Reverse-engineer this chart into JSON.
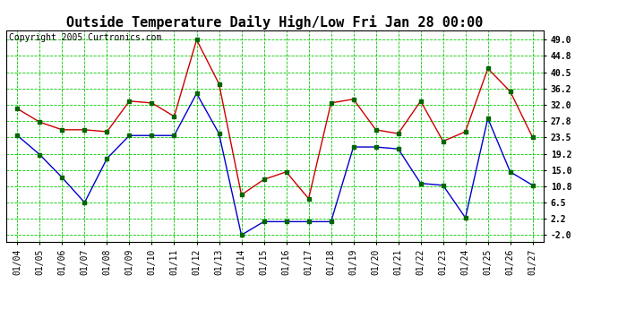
{
  "title": "Outside Temperature Daily High/Low Fri Jan 28 00:00",
  "copyright": "Copyright 2005 Curtronics.com",
  "dates": [
    "01/04",
    "01/05",
    "01/06",
    "01/07",
    "01/08",
    "01/09",
    "01/10",
    "01/11",
    "01/12",
    "01/13",
    "01/14",
    "01/15",
    "01/16",
    "01/17",
    "01/18",
    "01/19",
    "01/20",
    "01/21",
    "01/22",
    "01/23",
    "01/24",
    "01/25",
    "01/26",
    "01/27"
  ],
  "high": [
    31.0,
    27.5,
    25.5,
    25.5,
    25.0,
    33.0,
    32.5,
    29.0,
    49.0,
    37.5,
    8.5,
    12.5,
    14.5,
    7.5,
    32.5,
    33.5,
    25.5,
    24.5,
    33.0,
    22.5,
    25.0,
    41.5,
    35.5,
    23.5
  ],
  "low": [
    24.0,
    19.0,
    13.0,
    6.5,
    18.0,
    24.0,
    24.0,
    24.0,
    35.0,
    24.5,
    -2.0,
    1.5,
    1.5,
    1.5,
    1.5,
    21.0,
    21.0,
    20.5,
    11.5,
    11.0,
    2.5,
    28.5,
    14.5,
    11.0
  ],
  "high_color": "#cc0000",
  "low_color": "#0000cc",
  "marker_color": "#006600",
  "bg_color": "#ffffff",
  "plot_bg_color": "#ffffff",
  "grid_color": "#00cc00",
  "yticks": [
    49.0,
    44.8,
    40.5,
    36.2,
    32.0,
    27.8,
    23.5,
    19.2,
    15.0,
    10.8,
    6.5,
    2.2,
    -2.0
  ],
  "ylim": [
    -3.8,
    51.5
  ],
  "title_fontsize": 11,
  "copyright_fontsize": 7,
  "tick_fontsize": 7,
  "ytick_fontsize": 7
}
